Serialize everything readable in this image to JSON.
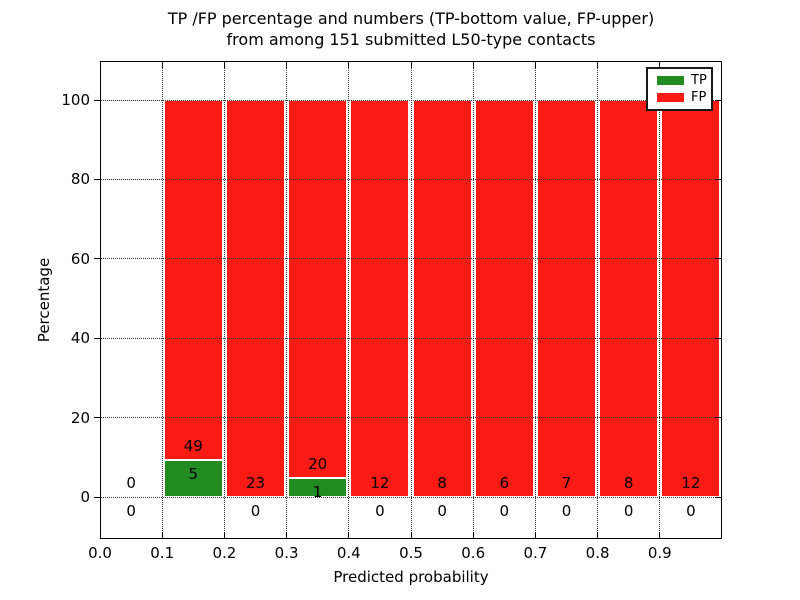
{
  "figure": {
    "title_line1": "TP /FP percentage and numbers (TP-bottom value, FP-upper)",
    "title_line2": "from among 151 submitted L50-type contacts"
  },
  "chart_data": {
    "type": "bar",
    "stacked": true,
    "normalized_to_percent": true,
    "title": "TP /FP percentage and numbers (TP-bottom value, FP-upper) from among 151 submitted L50-type contacts",
    "xlabel": "Predicted probability",
    "ylabel": "Percentage",
    "total_contacts": 151,
    "xlim": [
      0.0,
      1.0
    ],
    "ylim": [
      -11,
      110
    ],
    "grid": "dotted, both axes, on",
    "bin_edges": [
      0.0,
      0.1,
      0.2,
      0.3,
      0.4,
      0.5,
      0.6,
      0.7,
      0.8,
      0.9,
      1.0
    ],
    "xtick_labels": [
      "0.0",
      "0.1",
      "0.2",
      "0.3",
      "0.4",
      "0.5",
      "0.6",
      "0.7",
      "0.8",
      "0.9"
    ],
    "xtick_values": [
      0.0,
      0.1,
      0.2,
      0.3,
      0.4,
      0.5,
      0.6,
      0.7,
      0.8,
      0.9
    ],
    "ytick_labels": [
      "0",
      "20",
      "40",
      "60",
      "80",
      "100"
    ],
    "ytick_values": [
      0,
      20,
      40,
      60,
      80,
      100
    ],
    "series": [
      {
        "name": "TP",
        "color": "#228B22",
        "counts": [
          0,
          5,
          0,
          1,
          0,
          0,
          0,
          0,
          0,
          0
        ]
      },
      {
        "name": "FP",
        "color": "#fa1c14",
        "counts": [
          0,
          49,
          23,
          20,
          12,
          8,
          6,
          7,
          8,
          12
        ]
      }
    ],
    "bar_value_labels": {
      "tp_labels": [
        "0",
        "5",
        "0",
        "1",
        "0",
        "0",
        "0",
        "0",
        "0",
        "0"
      ],
      "fp_labels": [
        "0",
        "49",
        "23",
        "20",
        "12",
        "8",
        "6",
        "7",
        "8",
        "12"
      ],
      "note": "FP count printed just above green/red boundary, TP count just below it"
    },
    "legend": {
      "position": "upper right",
      "entries": [
        {
          "label": "TP",
          "color": "#228B22"
        },
        {
          "label": "FP",
          "color": "#fa1c14"
        }
      ]
    },
    "colors": {
      "tp_green": "#228B22",
      "fp_red": "#fa1c14",
      "grid": "#333333",
      "spine": "#000000",
      "background": "#ffffff"
    }
  }
}
